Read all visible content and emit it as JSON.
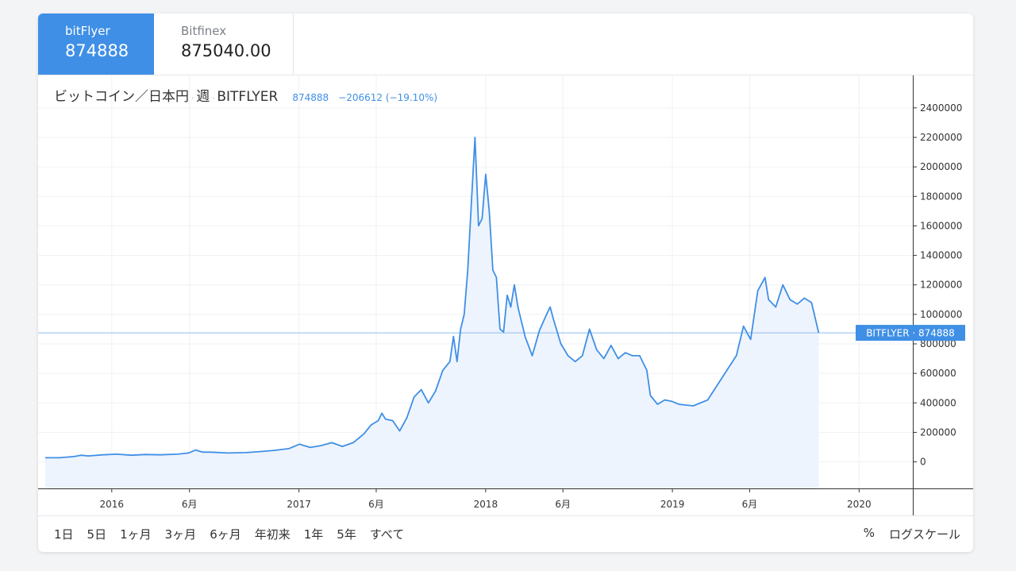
{
  "tabs": [
    {
      "name": "bitFlyer",
      "price": "874888"
    },
    {
      "name": "Bitfinex",
      "price": "875040.00"
    }
  ],
  "header": {
    "symbol": "ビットコイン／日本円",
    "interval": "週",
    "exchange": "BITFLYER",
    "price": "874888",
    "change": "−206612 (−19.10%)"
  },
  "price_tag": {
    "label": "BITFLYER",
    "value": "874888"
  },
  "footer": {
    "ranges": [
      "1日",
      "5日",
      "1ヶ月",
      "3ヶ月",
      "6ヶ月",
      "年初来",
      "1年",
      "5年",
      "すべて"
    ],
    "percent": "%",
    "log_scale": "ログスケール"
  },
  "colors": {
    "line": "#3f8fe6",
    "area": "#eef4fd",
    "active_tab": "#3f8fe6"
  },
  "chart_data": {
    "type": "area",
    "y_ticks": [
      0,
      200000,
      400000,
      600000,
      800000,
      1000000,
      1200000,
      1400000,
      1600000,
      1800000,
      2000000,
      2200000,
      2400000
    ],
    "ylim": [
      -180000,
      2620000
    ],
    "x_ticks": [
      {
        "label": "2016",
        "date": "2016-01-01"
      },
      {
        "label": "6月",
        "date": "2016-06-01"
      },
      {
        "label": "2017",
        "date": "2017-01-01"
      },
      {
        "label": "6月",
        "date": "2017-06-01"
      },
      {
        "label": "2018",
        "date": "2018-01-01"
      },
      {
        "label": "6月",
        "date": "2018-06-01"
      },
      {
        "label": "2019",
        "date": "2019-01-01"
      },
      {
        "label": "6月",
        "date": "2019-06-01"
      },
      {
        "label": "2020",
        "date": "2020-01-01"
      }
    ],
    "xlim": [
      "2015-08-10",
      "2020-04-15"
    ],
    "last_value": 874888,
    "grid": true,
    "series": [
      {
        "points": [
          [
            "2015-08-24",
            28000
          ],
          [
            "2015-09-21",
            28000
          ],
          [
            "2015-10-19",
            36000
          ],
          [
            "2015-11-02",
            45000
          ],
          [
            "2015-11-16",
            40000
          ],
          [
            "2015-12-14",
            48000
          ],
          [
            "2016-01-11",
            52000
          ],
          [
            "2016-02-08",
            45000
          ],
          [
            "2016-03-07",
            50000
          ],
          [
            "2016-04-04",
            48000
          ],
          [
            "2016-05-09",
            52000
          ],
          [
            "2016-05-30",
            60000
          ],
          [
            "2016-06-13",
            80000
          ],
          [
            "2016-06-27",
            66000
          ],
          [
            "2016-07-11",
            66000
          ],
          [
            "2016-08-15",
            60000
          ],
          [
            "2016-09-19",
            63000
          ],
          [
            "2016-10-17",
            70000
          ],
          [
            "2016-11-14",
            78000
          ],
          [
            "2016-12-12",
            90000
          ],
          [
            "2017-01-02",
            120000
          ],
          [
            "2017-01-23",
            98000
          ],
          [
            "2017-02-13",
            110000
          ],
          [
            "2017-03-06",
            130000
          ],
          [
            "2017-03-27",
            105000
          ],
          [
            "2017-04-17",
            130000
          ],
          [
            "2017-05-08",
            190000
          ],
          [
            "2017-05-22",
            250000
          ],
          [
            "2017-06-05",
            280000
          ],
          [
            "2017-06-12",
            330000
          ],
          [
            "2017-06-19",
            290000
          ],
          [
            "2017-07-03",
            280000
          ],
          [
            "2017-07-17",
            210000
          ],
          [
            "2017-07-31",
            300000
          ],
          [
            "2017-08-14",
            440000
          ],
          [
            "2017-08-28",
            490000
          ],
          [
            "2017-09-11",
            400000
          ],
          [
            "2017-09-25",
            480000
          ],
          [
            "2017-10-09",
            620000
          ],
          [
            "2017-10-23",
            680000
          ],
          [
            "2017-10-30",
            850000
          ],
          [
            "2017-11-06",
            680000
          ],
          [
            "2017-11-13",
            900000
          ],
          [
            "2017-11-20",
            1000000
          ],
          [
            "2017-11-27",
            1300000
          ],
          [
            "2017-12-04",
            1750000
          ],
          [
            "2017-12-11",
            2200000
          ],
          [
            "2017-12-18",
            1600000
          ],
          [
            "2017-12-25",
            1650000
          ],
          [
            "2018-01-01",
            1950000
          ],
          [
            "2018-01-08",
            1700000
          ],
          [
            "2018-01-15",
            1300000
          ],
          [
            "2018-01-22",
            1250000
          ],
          [
            "2018-01-29",
            900000
          ],
          [
            "2018-02-05",
            880000
          ],
          [
            "2018-02-12",
            1130000
          ],
          [
            "2018-02-19",
            1050000
          ],
          [
            "2018-02-26",
            1200000
          ],
          [
            "2018-03-05",
            1050000
          ],
          [
            "2018-03-19",
            850000
          ],
          [
            "2018-04-02",
            720000
          ],
          [
            "2018-04-16",
            890000
          ],
          [
            "2018-04-30",
            1000000
          ],
          [
            "2018-05-07",
            1050000
          ],
          [
            "2018-05-14",
            960000
          ],
          [
            "2018-05-28",
            800000
          ],
          [
            "2018-06-11",
            720000
          ],
          [
            "2018-06-25",
            680000
          ],
          [
            "2018-07-09",
            720000
          ],
          [
            "2018-07-23",
            900000
          ],
          [
            "2018-08-06",
            760000
          ],
          [
            "2018-08-20",
            700000
          ],
          [
            "2018-09-03",
            790000
          ],
          [
            "2018-09-17",
            700000
          ],
          [
            "2018-10-01",
            740000
          ],
          [
            "2018-10-15",
            720000
          ],
          [
            "2018-10-29",
            720000
          ],
          [
            "2018-11-12",
            620000
          ],
          [
            "2018-11-19",
            450000
          ],
          [
            "2018-12-03",
            390000
          ],
          [
            "2018-12-17",
            420000
          ],
          [
            "2018-12-31",
            410000
          ],
          [
            "2019-01-14",
            390000
          ],
          [
            "2019-02-11",
            380000
          ],
          [
            "2019-03-11",
            420000
          ],
          [
            "2019-04-08",
            570000
          ],
          [
            "2019-05-06",
            720000
          ],
          [
            "2019-05-20",
            920000
          ],
          [
            "2019-06-03",
            830000
          ],
          [
            "2019-06-17",
            1160000
          ],
          [
            "2019-07-01",
            1250000
          ],
          [
            "2019-07-08",
            1100000
          ],
          [
            "2019-07-22",
            1050000
          ],
          [
            "2019-08-05",
            1200000
          ],
          [
            "2019-08-19",
            1100000
          ],
          [
            "2019-09-02",
            1070000
          ],
          [
            "2019-09-16",
            1110000
          ],
          [
            "2019-09-30",
            1080000
          ],
          [
            "2019-10-14",
            874888
          ]
        ]
      }
    ]
  }
}
